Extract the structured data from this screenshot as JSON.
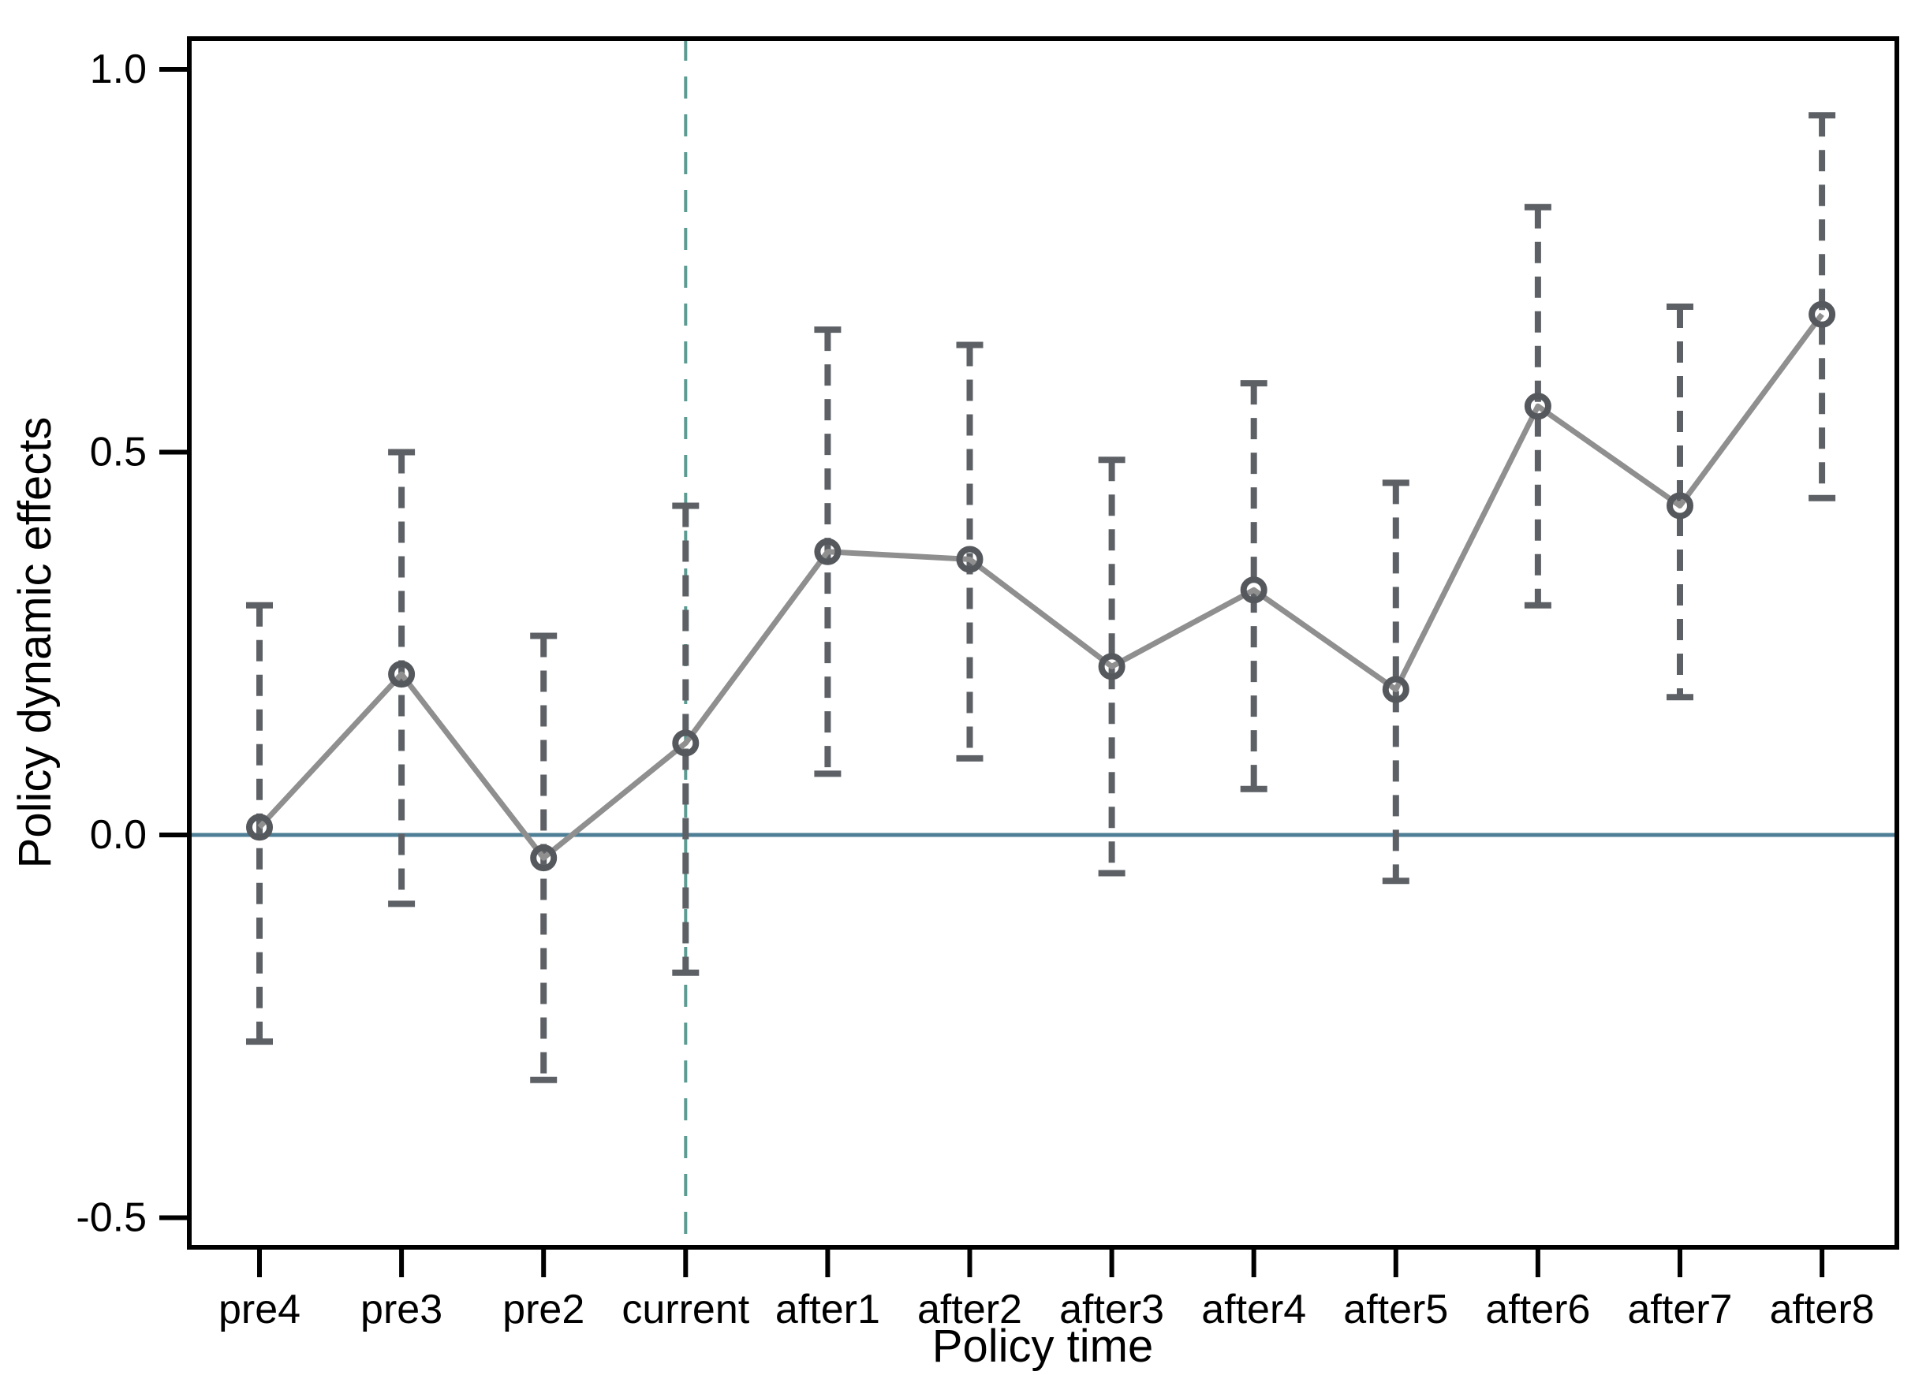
{
  "chart_data": {
    "type": "line",
    "title": "",
    "xlabel": "Policy time",
    "ylabel": "Policy dynamic effects",
    "categories": [
      "pre4",
      "pre3",
      "pre2",
      "current",
      "after1",
      "after2",
      "after3",
      "after4",
      "after5",
      "after6",
      "after7",
      "after8"
    ],
    "series": [
      {
        "name": "estimate",
        "values": [
          0.01,
          0.21,
          -0.03,
          0.12,
          0.37,
          0.36,
          0.22,
          0.32,
          0.19,
          0.56,
          0.43,
          0.68
        ]
      },
      {
        "name": "ci_lower",
        "values": [
          -0.27,
          -0.09,
          -0.32,
          -0.18,
          0.08,
          0.1,
          -0.05,
          0.06,
          -0.06,
          0.3,
          0.18,
          0.44
        ]
      },
      {
        "name": "ci_upper",
        "values": [
          0.3,
          0.5,
          0.26,
          0.43,
          0.66,
          0.64,
          0.49,
          0.59,
          0.46,
          0.82,
          0.69,
          0.94
        ]
      }
    ],
    "y_ticks": [
      -0.5,
      0.0,
      0.5,
      1.0
    ],
    "y_tick_labels": [
      "-0.5",
      "0.0",
      "0.5",
      "1.0"
    ],
    "ylim": [
      -0.54,
      1.04
    ],
    "grid": "off",
    "legend": "none",
    "reference_lines": {
      "horizontal_y": 0.0,
      "vertical_at_category": "current"
    },
    "colors": {
      "zero_line": "#4e7f97",
      "event_time_line": "#5c9a92",
      "connect_line": "#8f8f8f",
      "error_bar": "#5d6166",
      "marker": "#55585c",
      "axis": "#000000",
      "background": "#ffffff"
    },
    "marker_style": "hollow-circle",
    "error_bar_style": "dashed-with-caps"
  }
}
